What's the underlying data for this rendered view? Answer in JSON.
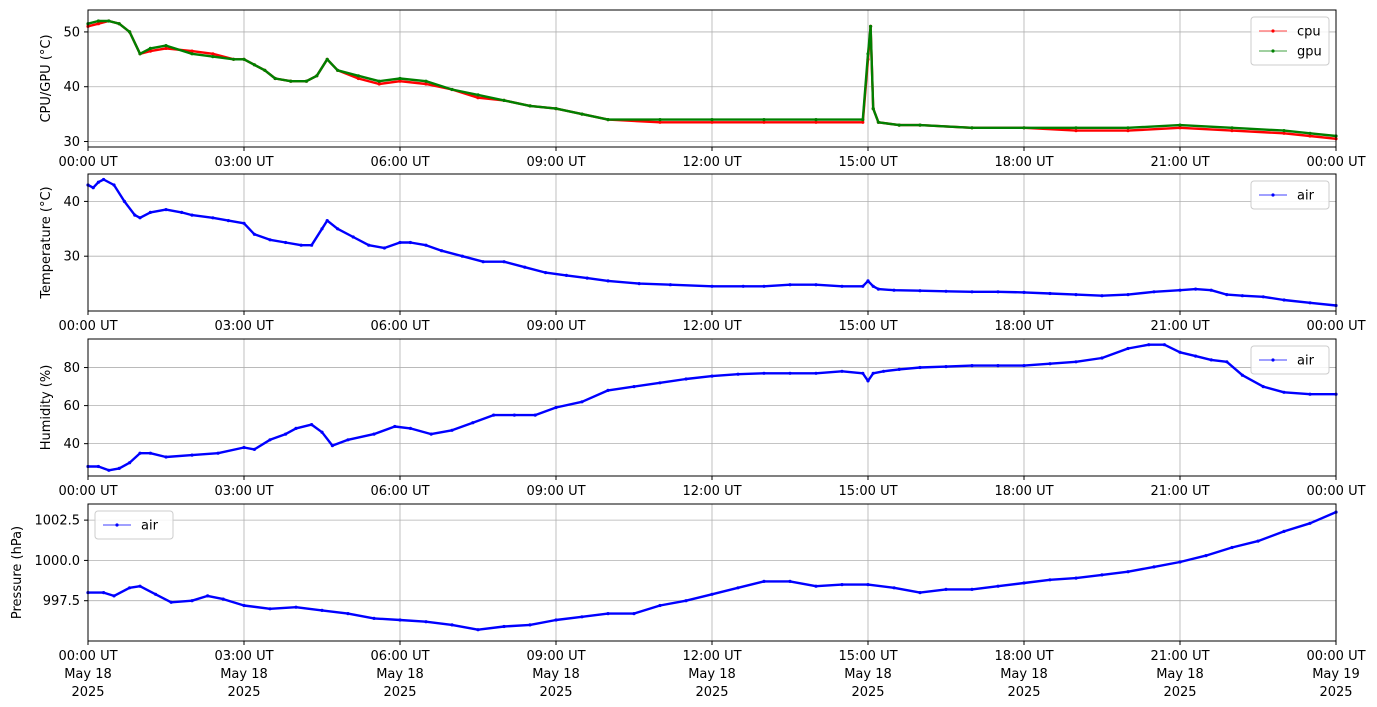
{
  "chart_data": [
    {
      "type": "line",
      "ylabel": "CPU/GPU (°C)",
      "ylim": [
        29,
        54
      ],
      "yticks": [
        30,
        40,
        50
      ],
      "xlim": [
        0,
        24
      ],
      "grid": true,
      "legend_position": "top-right",
      "series": [
        {
          "name": "cpu",
          "color": "#ff0000",
          "x": [
            0,
            0.2,
            0.4,
            0.6,
            0.8,
            1.0,
            1.2,
            1.5,
            2.0,
            2.4,
            2.8,
            3.0,
            3.2,
            3.4,
            3.6,
            3.9,
            4.2,
            4.4,
            4.6,
            4.8,
            5.2,
            5.6,
            6.0,
            6.5,
            7.0,
            7.5,
            8.0,
            8.5,
            9.0,
            9.5,
            10.0,
            11.0,
            12.0,
            13.0,
            14.0,
            14.9,
            15.0,
            15.05,
            15.1,
            15.2,
            15.6,
            16.0,
            17.0,
            18.0,
            19.0,
            20.0,
            21.0,
            22.0,
            23.0,
            23.5,
            24.0
          ],
          "values": [
            51,
            51.5,
            52,
            51.5,
            50,
            46,
            46.5,
            47,
            46.5,
            46,
            45,
            45,
            44,
            43,
            41.5,
            41,
            41,
            42,
            45,
            43,
            41.5,
            40.5,
            41,
            40.5,
            39.5,
            38,
            37.5,
            36.5,
            36,
            35,
            34,
            33.5,
            33.5,
            33.5,
            33.5,
            33.5,
            45,
            51,
            36,
            33.5,
            33,
            33,
            32.5,
            32.5,
            32,
            32,
            32.5,
            32,
            31.5,
            31,
            30.5
          ]
        },
        {
          "name": "gpu",
          "color": "#008000",
          "x": [
            0,
            0.2,
            0.4,
            0.6,
            0.8,
            1.0,
            1.2,
            1.5,
            2.0,
            2.4,
            2.8,
            3.0,
            3.2,
            3.4,
            3.6,
            3.9,
            4.2,
            4.4,
            4.6,
            4.8,
            5.2,
            5.6,
            6.0,
            6.5,
            7.0,
            7.5,
            8.0,
            8.5,
            9.0,
            9.5,
            10.0,
            11.0,
            12.0,
            13.0,
            14.0,
            14.9,
            15.0,
            15.05,
            15.1,
            15.2,
            15.6,
            16.0,
            17.0,
            18.0,
            19.0,
            20.0,
            21.0,
            22.0,
            23.0,
            23.5,
            24.0
          ],
          "values": [
            51.5,
            52,
            52,
            51.5,
            50,
            46,
            47,
            47.5,
            46,
            45.5,
            45,
            45,
            44,
            43,
            41.5,
            41,
            41,
            42,
            45,
            43,
            42,
            41,
            41.5,
            41,
            39.5,
            38.5,
            37.5,
            36.5,
            36,
            35,
            34,
            34,
            34,
            34,
            34,
            34,
            46,
            51,
            36,
            33.5,
            33,
            33,
            32.5,
            32.5,
            32.5,
            32.5,
            33,
            32.5,
            32,
            31.5,
            31
          ]
        }
      ]
    },
    {
      "type": "line",
      "ylabel": "Temperature (°C)",
      "ylim": [
        20,
        45
      ],
      "yticks": [
        30,
        40
      ],
      "xlim": [
        0,
        24
      ],
      "grid": true,
      "legend_position": "top-right",
      "series": [
        {
          "name": "air",
          "color": "#0000ff",
          "x": [
            0,
            0.1,
            0.2,
            0.3,
            0.5,
            0.7,
            0.9,
            1.0,
            1.2,
            1.5,
            1.8,
            2.0,
            2.4,
            2.7,
            3.0,
            3.2,
            3.5,
            3.8,
            4.1,
            4.3,
            4.5,
            4.6,
            4.8,
            5.1,
            5.4,
            5.7,
            6.0,
            6.2,
            6.5,
            6.8,
            7.2,
            7.6,
            8.0,
            8.4,
            8.8,
            9.2,
            9.6,
            10.0,
            10.6,
            11.2,
            12.0,
            12.6,
            13.0,
            13.5,
            14.0,
            14.5,
            14.9,
            15.0,
            15.1,
            15.2,
            15.5,
            16.0,
            16.5,
            17.0,
            17.5,
            18.0,
            18.5,
            19.0,
            19.5,
            20.0,
            20.5,
            21.0,
            21.3,
            21.6,
            21.9,
            22.2,
            22.6,
            23.0,
            23.5,
            24.0
          ],
          "values": [
            43,
            42.5,
            43.5,
            44,
            43,
            40,
            37.5,
            37,
            38,
            38.5,
            38,
            37.5,
            37,
            36.5,
            36,
            34,
            33,
            32.5,
            32,
            32,
            35,
            36.5,
            35,
            33.5,
            32,
            31.5,
            32.5,
            32.5,
            32,
            31,
            30,
            29,
            29,
            28,
            27,
            26.5,
            26,
            25.5,
            25,
            24.8,
            24.5,
            24.5,
            24.5,
            24.8,
            24.8,
            24.5,
            24.5,
            25.5,
            24.5,
            24,
            23.8,
            23.7,
            23.6,
            23.5,
            23.5,
            23.4,
            23.2,
            23,
            22.8,
            23,
            23.5,
            23.8,
            24,
            23.8,
            23,
            22.8,
            22.6,
            22,
            21.5,
            21
          ]
        }
      ]
    },
    {
      "type": "line",
      "ylabel": "Humidity (%)",
      "ylim": [
        23,
        95
      ],
      "yticks": [
        40,
        60,
        80
      ],
      "xlim": [
        0,
        24
      ],
      "grid": true,
      "legend_position": "top-right",
      "series": [
        {
          "name": "air",
          "color": "#0000ff",
          "x": [
            0,
            0.2,
            0.4,
            0.6,
            0.8,
            1.0,
            1.2,
            1.5,
            2.0,
            2.5,
            3.0,
            3.2,
            3.5,
            3.8,
            4.0,
            4.3,
            4.5,
            4.7,
            5.0,
            5.5,
            5.9,
            6.2,
            6.6,
            7.0,
            7.4,
            7.8,
            8.2,
            8.6,
            9.0,
            9.5,
            10.0,
            10.5,
            11.0,
            11.5,
            12.0,
            12.5,
            13.0,
            13.5,
            14.0,
            14.5,
            14.9,
            15.0,
            15.1,
            15.3,
            15.6,
            16.0,
            16.5,
            17.0,
            17.5,
            18.0,
            18.5,
            19.0,
            19.5,
            20.0,
            20.4,
            20.7,
            21.0,
            21.3,
            21.6,
            21.9,
            22.2,
            22.6,
            23.0,
            23.5,
            24.0
          ],
          "values": [
            28,
            28,
            26,
            27,
            30,
            35,
            35,
            33,
            34,
            35,
            38,
            37,
            42,
            45,
            48,
            50,
            46,
            39,
            42,
            45,
            49,
            48,
            45,
            47,
            51,
            55,
            55,
            55,
            59,
            62,
            68,
            70,
            72,
            74,
            75.5,
            76.5,
            77,
            77,
            77,
            78,
            77,
            73,
            77,
            78,
            79,
            80,
            80.5,
            81,
            81,
            81,
            82,
            83,
            85,
            90,
            92,
            92,
            88,
            86,
            84,
            83,
            76,
            70,
            67,
            66,
            66
          ]
        }
      ]
    },
    {
      "type": "line",
      "ylabel": "Pressure (hPa)",
      "ylim": [
        995.0,
        1003.5
      ],
      "yticks": [
        997.5,
        1000.0,
        1002.5
      ],
      "yticklabels": [
        "997.5",
        "1000.0",
        "1002.5"
      ],
      "xlim": [
        0,
        24
      ],
      "grid": true,
      "legend_position": "top-left",
      "series": [
        {
          "name": "air",
          "color": "#0000ff",
          "x": [
            0,
            0.3,
            0.5,
            0.8,
            1.0,
            1.3,
            1.6,
            2.0,
            2.3,
            2.6,
            3.0,
            3.5,
            4.0,
            4.5,
            5.0,
            5.5,
            6.0,
            6.5,
            7.0,
            7.5,
            8.0,
            8.5,
            9.0,
            9.5,
            10.0,
            10.5,
            11.0,
            11.5,
            12.0,
            12.5,
            13.0,
            13.5,
            14.0,
            14.5,
            15.0,
            15.5,
            16.0,
            16.5,
            17.0,
            17.5,
            18.0,
            18.5,
            19.0,
            19.5,
            20.0,
            20.5,
            21.0,
            21.5,
            22.0,
            22.5,
            23.0,
            23.5,
            24.0
          ],
          "values": [
            998.0,
            998.0,
            997.8,
            998.3,
            998.4,
            997.9,
            997.4,
            997.5,
            997.8,
            997.6,
            997.2,
            997.0,
            997.1,
            996.9,
            996.7,
            996.4,
            996.3,
            996.2,
            996.0,
            995.7,
            995.9,
            996.0,
            996.3,
            996.5,
            996.7,
            996.7,
            997.2,
            997.5,
            997.9,
            998.3,
            998.7,
            998.7,
            998.4,
            998.5,
            998.5,
            998.3,
            998.0,
            998.2,
            998.2,
            998.4,
            998.6,
            998.8,
            998.9,
            999.1,
            999.3,
            999.6,
            999.9,
            1000.3,
            1000.8,
            1001.2,
            1001.8,
            1002.3,
            1003.0
          ]
        }
      ]
    }
  ],
  "xaxis": {
    "ticks": [
      0,
      3,
      6,
      9,
      12,
      15,
      18,
      21,
      24
    ],
    "time_labels": [
      "00:00 UT",
      "03:00 UT",
      "06:00 UT",
      "09:00 UT",
      "12:00 UT",
      "15:00 UT",
      "18:00 UT",
      "21:00 UT",
      "00:00 UT"
    ],
    "date_labels": [
      "May 18",
      "May 18",
      "May 18",
      "May 18",
      "May 18",
      "May 18",
      "May 18",
      "May 18",
      "May 19"
    ],
    "year_labels": [
      "2025",
      "2025",
      "2025",
      "2025",
      "2025",
      "2025",
      "2025",
      "2025",
      "2025"
    ]
  }
}
